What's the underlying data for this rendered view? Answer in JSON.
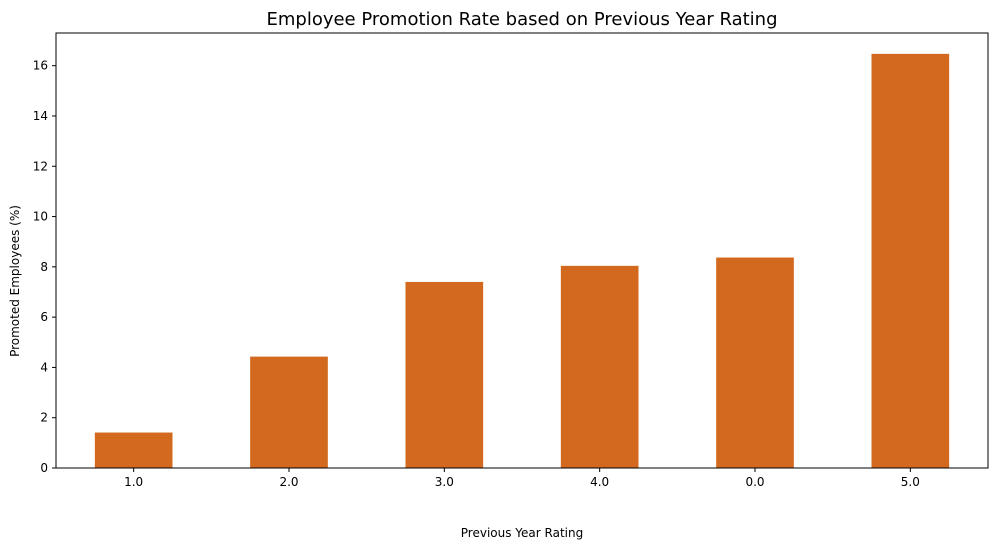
{
  "chart_data": {
    "type": "bar",
    "title": "Employee Promotion Rate based on Previous Year Rating",
    "xlabel": "Previous Year Rating",
    "ylabel": "Promoted Employees (%)",
    "categories": [
      "1.0",
      "2.0",
      "3.0",
      "4.0",
      "0.0",
      "5.0"
    ],
    "values": [
      1.41,
      4.43,
      7.4,
      8.04,
      8.37,
      16.47
    ],
    "ylim": [
      0,
      17.3
    ],
    "yticks": [
      0,
      2,
      4,
      6,
      8,
      10,
      12,
      14,
      16
    ],
    "bar_color": "#d2691e",
    "grid": false,
    "legend": false
  }
}
